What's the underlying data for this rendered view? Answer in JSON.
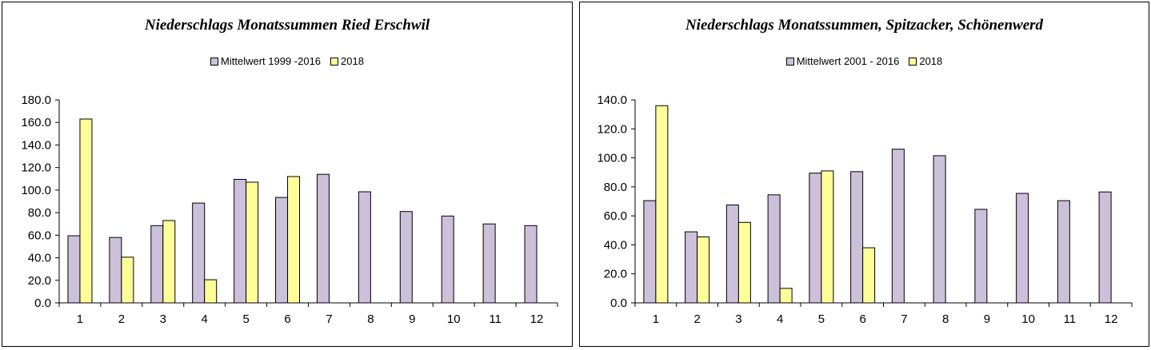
{
  "chart_data": [
    {
      "type": "bar",
      "title": "Niederschlags Monatssummen Ried Erschwil",
      "categories": [
        "1",
        "2",
        "3",
        "4",
        "5",
        "6",
        "7",
        "8",
        "9",
        "10",
        "11",
        "12"
      ],
      "series": [
        {
          "name": "Mittelwert 1999 -2016",
          "color": "#ccc0da",
          "values": [
            59.5,
            58.0,
            68.5,
            88.5,
            109.5,
            93.5,
            114.0,
            98.5,
            81.0,
            77.0,
            70.0,
            68.5
          ]
        },
        {
          "name": "2018",
          "color": "#ffff99",
          "values": [
            163.0,
            40.5,
            73.0,
            null,
            107.0,
            112.0,
            null,
            null,
            null,
            null,
            null,
            null
          ]
        }
      ],
      "series_2018_april": 20.5,
      "yticks": [
        "0.0",
        "20.0",
        "40.0",
        "60.0",
        "80.0",
        "100.0",
        "120.0",
        "140.0",
        "160.0",
        "180.0"
      ],
      "ylim": [
        0,
        180
      ],
      "legend_position": "top",
      "grid": false
    },
    {
      "type": "bar",
      "title": "Niederschlags Monatssummen, Spitzacker, Schönenwerd",
      "categories": [
        "1",
        "2",
        "3",
        "4",
        "5",
        "6",
        "7",
        "8",
        "9",
        "10",
        "11",
        "12"
      ],
      "series": [
        {
          "name": "Mittelwert 2001 - 2016",
          "color": "#ccc0da",
          "values": [
            70.5,
            49.0,
            67.5,
            74.5,
            89.5,
            90.5,
            106.0,
            101.5,
            64.5,
            75.5,
            70.5,
            76.5
          ]
        },
        {
          "name": "2018",
          "color": "#ffff99",
          "values": [
            136.0,
            45.5,
            55.5,
            10.0,
            91.0,
            38.0,
            null,
            null,
            null,
            null,
            null,
            null
          ]
        }
      ],
      "yticks": [
        "0.0",
        "20.0",
        "40.0",
        "60.0",
        "80.0",
        "100.0",
        "120.0",
        "140.0"
      ],
      "ylim": [
        0,
        140
      ],
      "legend_position": "top",
      "grid": false
    }
  ]
}
